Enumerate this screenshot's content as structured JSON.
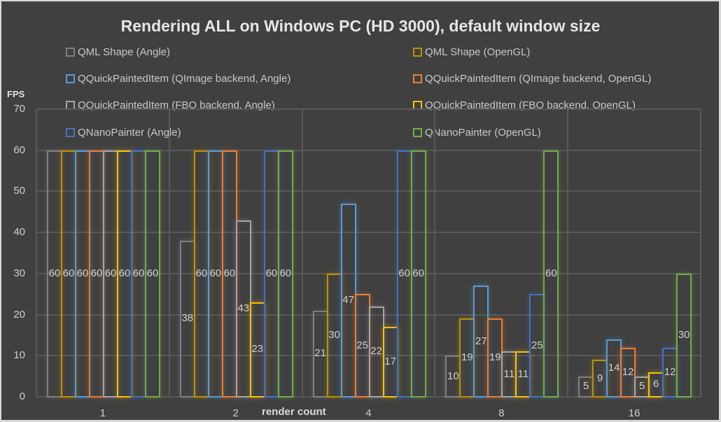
{
  "chart_data": {
    "type": "bar",
    "title": "Rendering ALL on Windows PC (HD 3000), default window size",
    "xlabel": "render count",
    "ylabel": "FPS",
    "ylim": [
      0,
      70
    ],
    "yticks": [
      0,
      10,
      20,
      30,
      40,
      50,
      60,
      70
    ],
    "grid": true,
    "legend_position": "top",
    "categories": [
      "1",
      "2",
      "4",
      "8",
      "16"
    ],
    "series": [
      {
        "name": "QML Shape (Angle)",
        "color": "#7f7f7f",
        "values": [
          60,
          38,
          21,
          10,
          5
        ]
      },
      {
        "name": "QML Shape (OpenGL)",
        "color": "#bf9000",
        "values": [
          60,
          60,
          30,
          19,
          9
        ]
      },
      {
        "name": "QQuickPaintedItem (QImage backend, Angle)",
        "color": "#5b9bd5",
        "values": [
          60,
          60,
          47,
          27,
          14
        ]
      },
      {
        "name": "QQuickPaintedItem (QImage backend, OpenGL)",
        "color": "#ed7d31",
        "values": [
          60,
          60,
          25,
          19,
          12
        ]
      },
      {
        "name": "QQuickPaintedItem (FBO backend, Angle)",
        "color": "#a5a5a5",
        "values": [
          60,
          43,
          22,
          11,
          5
        ]
      },
      {
        "name": "QQuickPaintedItem (FBO backend, OpenGL)",
        "color": "#ffc000",
        "values": [
          60,
          23,
          17,
          11,
          6
        ]
      },
      {
        "name": "QNanoPainter (Angle)",
        "color": "#4472c4",
        "values": [
          60,
          60,
          60,
          25,
          12
        ]
      },
      {
        "name": "QNanoPainter (OpenGL)",
        "color": "#70ad47",
        "values": [
          60,
          60,
          60,
          60,
          30
        ]
      }
    ]
  }
}
